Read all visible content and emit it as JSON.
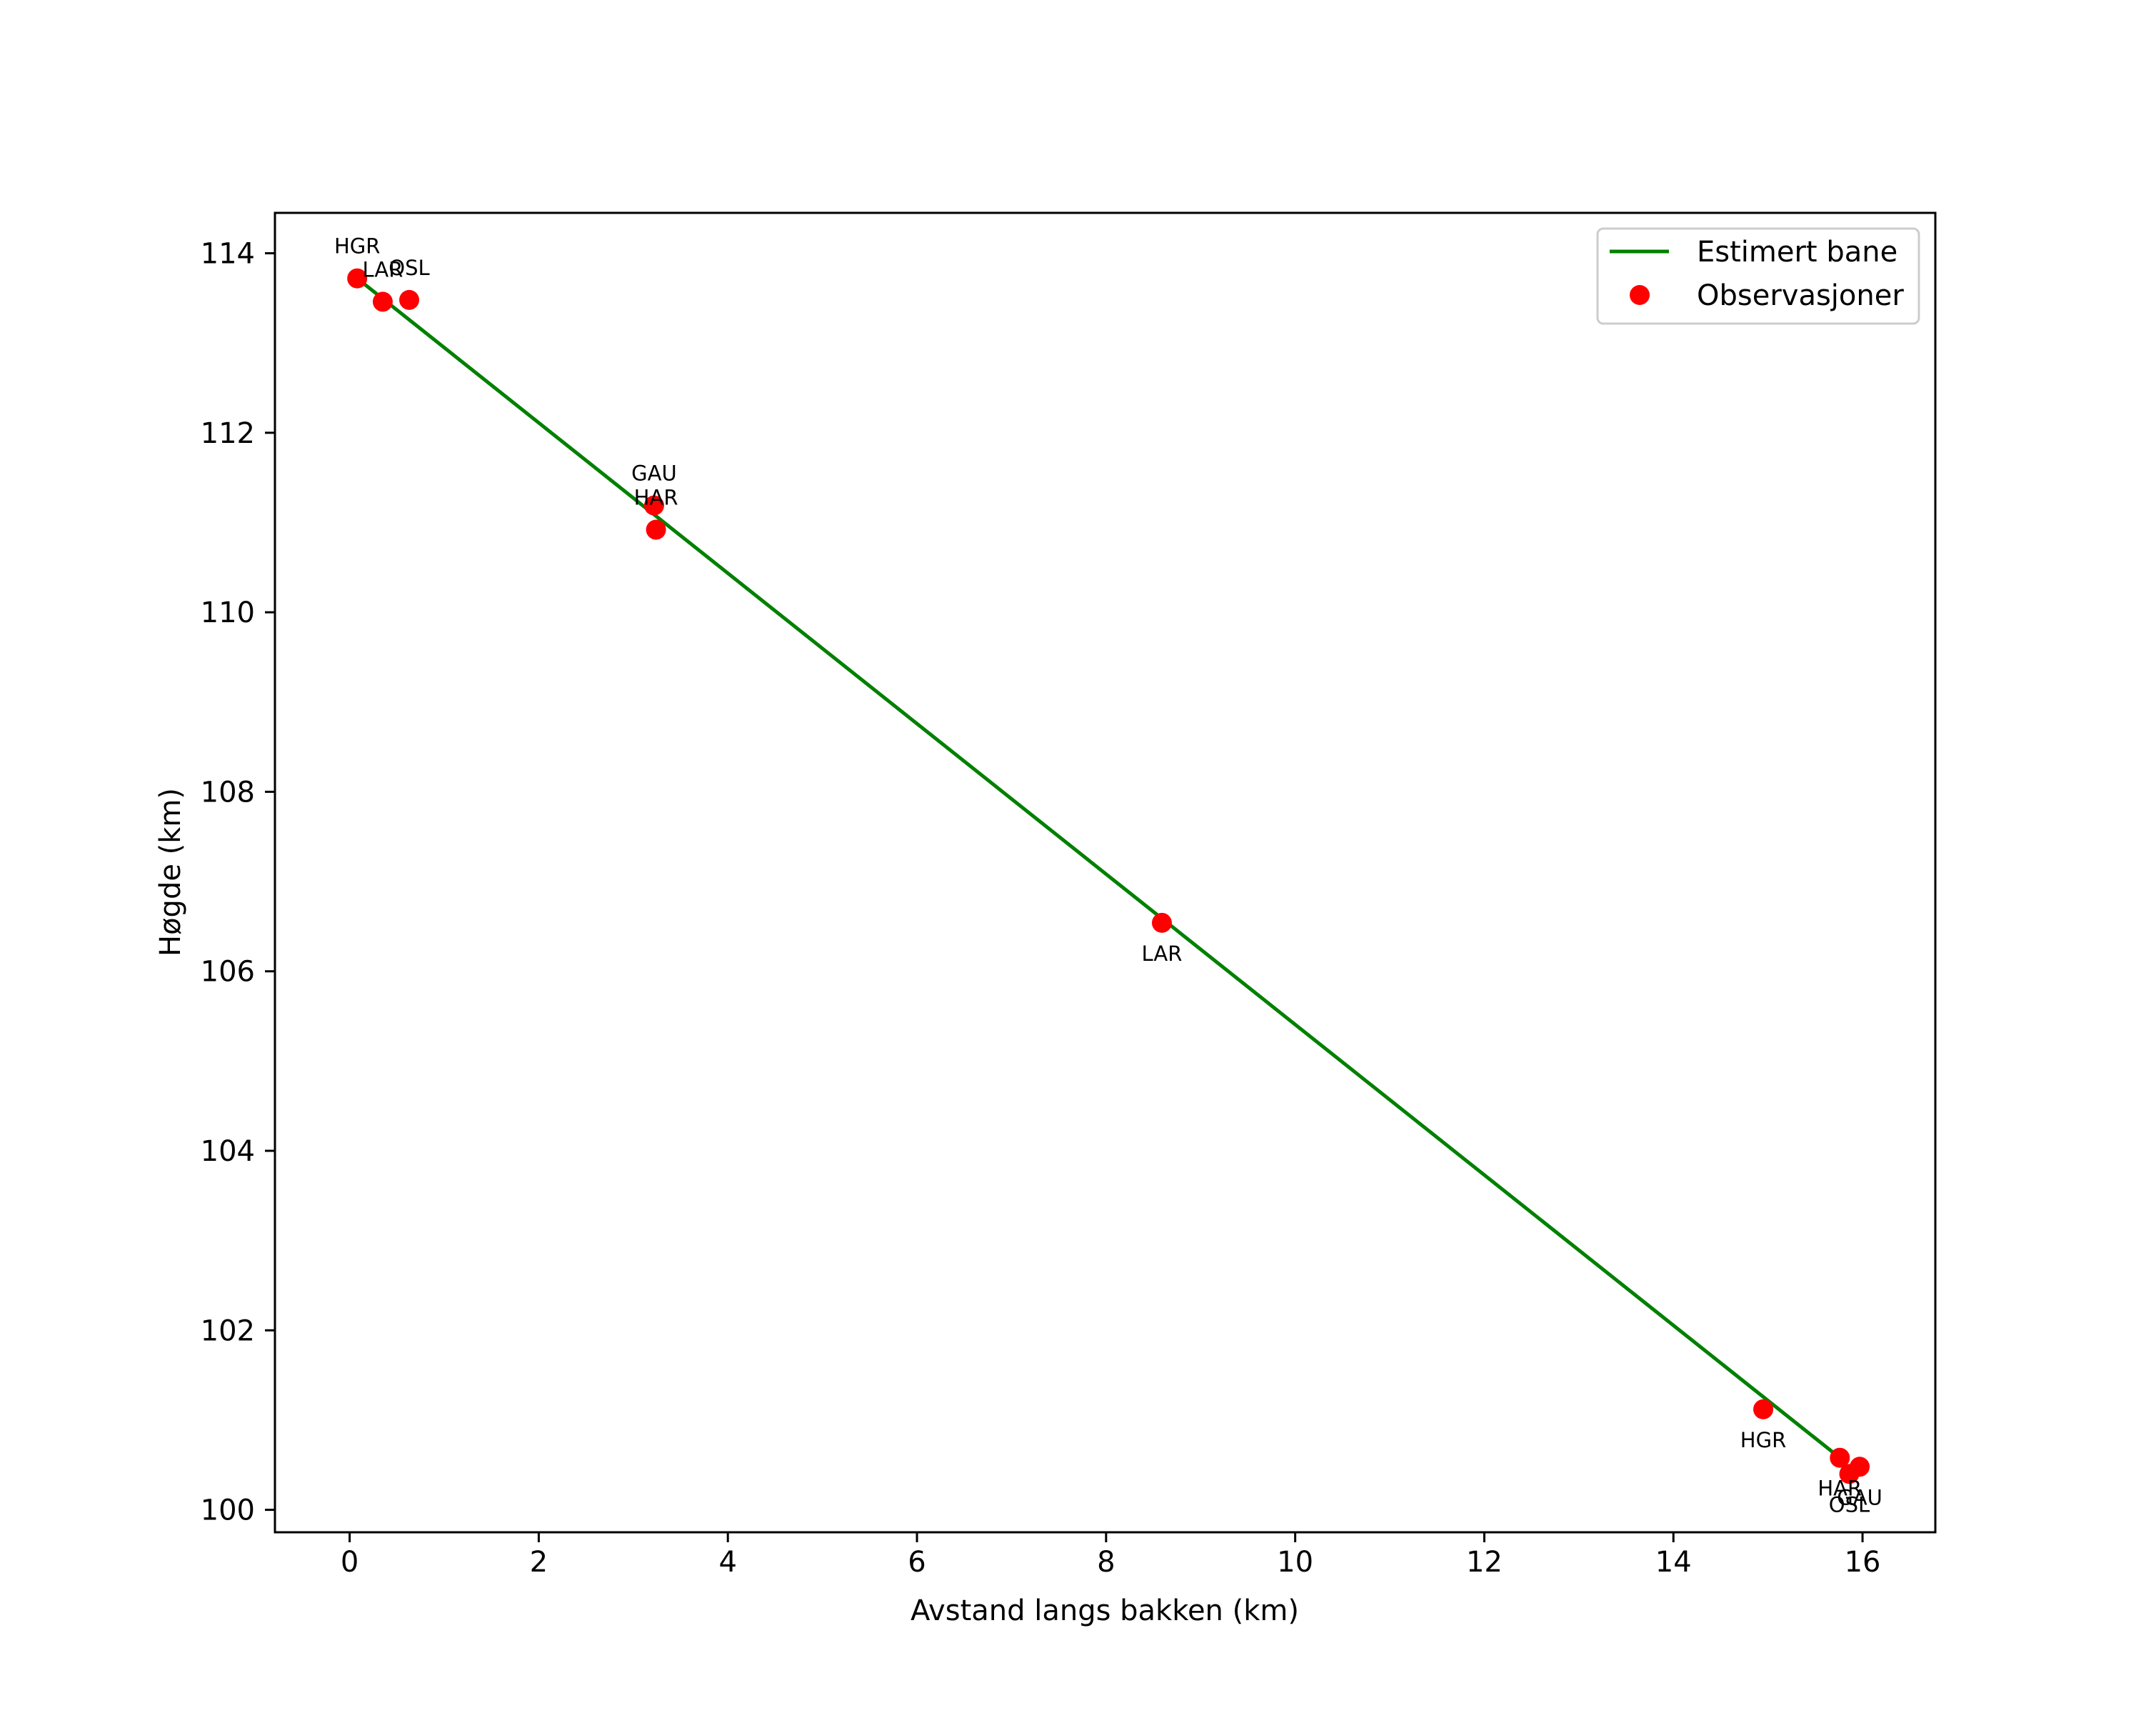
{
  "chart_data": {
    "type": "line",
    "title": "",
    "xlabel": "Avstand langs bakken (km)",
    "ylabel": "Høgde (km)",
    "xlim": [
      -0.79,
      16.77
    ],
    "ylim": [
      99.75,
      114.45
    ],
    "xticks": [
      0,
      2,
      4,
      6,
      8,
      10,
      12,
      14,
      16
    ],
    "yticks": [
      100,
      102,
      104,
      106,
      108,
      110,
      112,
      114
    ],
    "grid": false,
    "legend_position": "upper right",
    "legend": [
      {
        "label": "Estimert bane",
        "kind": "line",
        "color": "#008000"
      },
      {
        "label": "Observasjoner",
        "kind": "marker",
        "color": "#ff0000"
      }
    ],
    "series": [
      {
        "name": "Estimert bane",
        "type": "line",
        "color": "#008000",
        "x": [
          0.08,
          15.76
        ],
        "y": [
          113.72,
          100.58
        ]
      },
      {
        "name": "Observasjoner",
        "type": "scatter",
        "color": "#ff0000",
        "points": [
          {
            "station": "HGR",
            "x": 0.08,
            "y": 113.72,
            "label_pos": "above"
          },
          {
            "station": "LAR",
            "x": 0.35,
            "y": 113.46,
            "label_pos": "above"
          },
          {
            "station": "OSL",
            "x": 0.63,
            "y": 113.48,
            "label_pos": "above"
          },
          {
            "station": "GAU",
            "x": 3.22,
            "y": 111.19,
            "label_pos": "above"
          },
          {
            "station": "HAR",
            "x": 3.24,
            "y": 110.92,
            "label_pos": "above"
          },
          {
            "station": "LAR",
            "x": 8.59,
            "y": 106.54,
            "label_pos": "below"
          },
          {
            "station": "HGR",
            "x": 14.95,
            "y": 101.12,
            "label_pos": "below"
          },
          {
            "station": "HAR",
            "x": 15.76,
            "y": 100.58,
            "label_pos": "below"
          },
          {
            "station": "GAU",
            "x": 15.97,
            "y": 100.48,
            "label_pos": "below"
          },
          {
            "station": "OSL",
            "x": 15.86,
            "y": 100.4,
            "label_pos": "below"
          }
        ]
      }
    ]
  }
}
